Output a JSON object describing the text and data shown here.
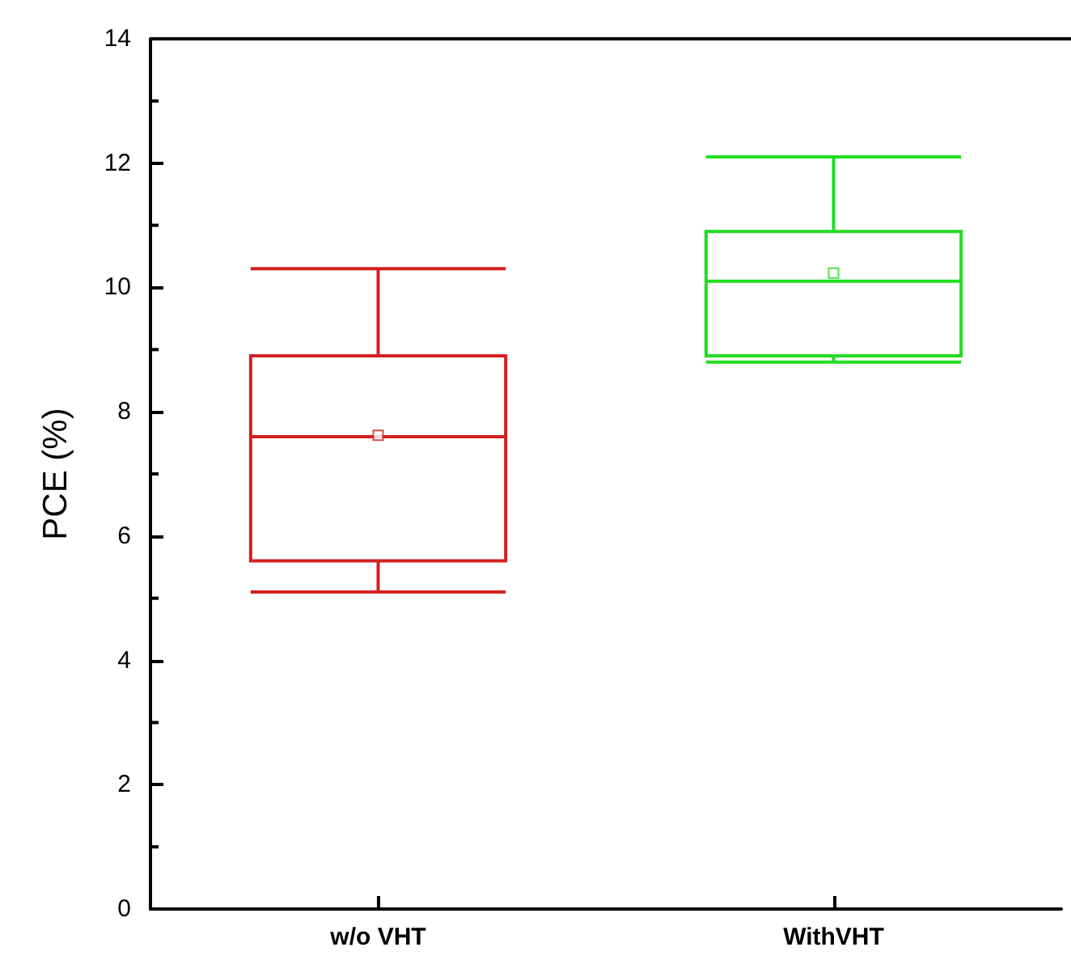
{
  "chart_data": {
    "type": "box",
    "ylabel": "PCE (%)",
    "categories": [
      "w/o VHT",
      "WithVHT"
    ],
    "colors": [
      "#d42020",
      "#22dd22"
    ],
    "boxes": [
      {
        "low": 5.1,
        "q1": 5.6,
        "median": 7.6,
        "q3": 8.9,
        "high": 10.3,
        "mean": 7.62
      },
      {
        "low": 8.8,
        "q1": 8.9,
        "median": 10.1,
        "q3": 10.9,
        "high": 12.1,
        "mean": 10.23
      }
    ],
    "ylim": [
      0,
      14
    ],
    "yticks": [
      0,
      2,
      4,
      6,
      8,
      10,
      12,
      14
    ],
    "grid": false
  }
}
